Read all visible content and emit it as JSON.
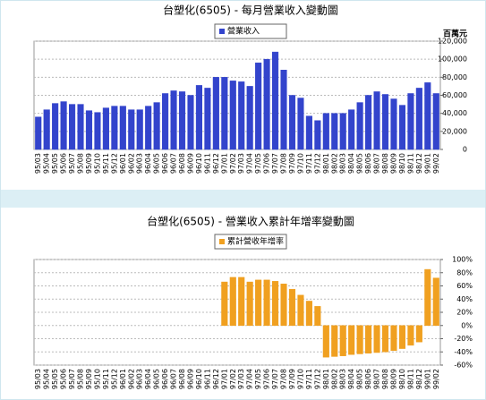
{
  "chart_data": [
    {
      "type": "bar",
      "title": "台塑化(6505) - 每月營業收入變動圖",
      "y_label": "百萬元",
      "categories": [
        "95/03",
        "95/04",
        "95/05",
        "95/06",
        "95/07",
        "95/08",
        "95/09",
        "95/10",
        "95/11",
        "95/12",
        "96/01",
        "96/02",
        "96/03",
        "96/04",
        "96/05",
        "96/06",
        "96/07",
        "96/08",
        "96/09",
        "96/10",
        "96/11",
        "96/12",
        "97/01",
        "97/02",
        "97/03",
        "97/04",
        "97/05",
        "97/06",
        "97/07",
        "97/08",
        "97/09",
        "97/10",
        "97/11",
        "97/12",
        "98/01",
        "98/02",
        "98/03",
        "98/04",
        "98/05",
        "98/06",
        "98/07",
        "98/08",
        "98/09",
        "98/10",
        "98/11",
        "98/12",
        "99/01",
        "99/02"
      ],
      "series": [
        {
          "name": "營業收入",
          "color": "#3344cc",
          "values": [
            36000,
            44000,
            51000,
            53000,
            50000,
            50000,
            43000,
            41000,
            46000,
            48000,
            48000,
            44000,
            44000,
            48000,
            52000,
            62000,
            65000,
            64000,
            60000,
            71000,
            68000,
            80000,
            80000,
            76000,
            75000,
            70000,
            96000,
            100000,
            108000,
            88000,
            60000,
            57000,
            37000,
            32000,
            40000,
            40000,
            40000,
            44000,
            52000,
            60000,
            64000,
            61000,
            56000,
            49000,
            62000,
            68000,
            74000,
            62000
          ]
        }
      ],
      "ylim": [
        0,
        120000
      ],
      "yticks": [
        0,
        {
          "value": 20000,
          "label": "20,000"
        },
        {
          "value": 40000,
          "label": "40,000"
        },
        {
          "value": 60000,
          "label": "60,000"
        },
        {
          "value": 80000,
          "label": "80,000"
        },
        {
          "value": 100000,
          "label": "100,000"
        },
        {
          "value": 120000,
          "label": "120,000"
        }
      ],
      "grid": true
    },
    {
      "type": "bar",
      "title": "台塑化(6505) -  營業收入累計年增率變動圖",
      "categories": [
        "95/03",
        "95/04",
        "95/05",
        "95/06",
        "95/07",
        "95/08",
        "95/09",
        "95/10",
        "95/11",
        "95/12",
        "96/01",
        "96/02",
        "96/03",
        "96/04",
        "96/05",
        "96/06",
        "96/07",
        "96/08",
        "96/09",
        "96/10",
        "96/11",
        "96/12",
        "97/01",
        "97/02",
        "97/03",
        "97/04",
        "97/05",
        "97/06",
        "97/07",
        "97/08",
        "97/09",
        "97/10",
        "97/11",
        "97/12",
        "98/01",
        "98/02",
        "98/03",
        "98/04",
        "98/05",
        "98/06",
        "98/07",
        "98/08",
        "98/09",
        "98/10",
        "98/11",
        "98/12",
        "99/01",
        "99/02"
      ],
      "series": [
        {
          "name": "累計營收年增率",
          "color": "#f0a020",
          "values": [
            0,
            0,
            0,
            0,
            0,
            0,
            0,
            0,
            0,
            0,
            0,
            0,
            0,
            0,
            0,
            0,
            0,
            0,
            0,
            0,
            0,
            0,
            66,
            73,
            73,
            66,
            69,
            69,
            67,
            63,
            55,
            46,
            37,
            29,
            -48,
            -47,
            -46,
            -44,
            -43,
            -42,
            -41,
            -40,
            -38,
            -35,
            -30,
            -25,
            85,
            72
          ]
        }
      ],
      "ylim": [
        -60,
        100
      ],
      "yticks": [
        {
          "value": -60,
          "label": "-60%"
        },
        {
          "value": -40,
          "label": "-40%"
        },
        {
          "value": -20,
          "label": "-20%"
        },
        {
          "value": 0,
          "label": "0%"
        },
        {
          "value": 20,
          "label": "20%"
        },
        {
          "value": 40,
          "label": "40%"
        },
        {
          "value": 60,
          "label": "60%"
        },
        {
          "value": 80,
          "label": "80%"
        },
        {
          "value": 100,
          "label": "100%"
        }
      ],
      "grid": true
    }
  ]
}
